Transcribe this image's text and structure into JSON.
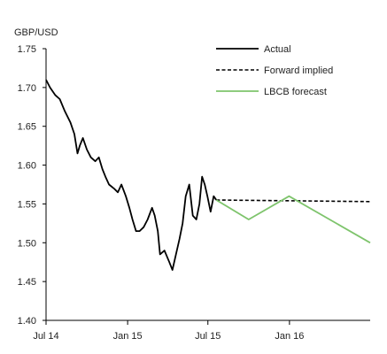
{
  "chart_data": {
    "type": "line",
    "title": "",
    "ylabel": "GBP/USD",
    "xlabel": "",
    "ylim": [
      1.4,
      1.75
    ],
    "yticks": [
      "1.40",
      "1.45",
      "1.50",
      "1.55",
      "1.60",
      "1.65",
      "1.70",
      "1.75"
    ],
    "xlim": [
      "2014-07",
      "2016-07"
    ],
    "xticks": [
      {
        "label": "Jul 14",
        "x": "2014-07"
      },
      {
        "label": "Jan 15",
        "x": "2015-01"
      },
      {
        "label": "Jul 15",
        "x": "2015-07"
      },
      {
        "label": "Jan 16",
        "x": "2016-01"
      }
    ],
    "grid": false,
    "legend_position": "top-right",
    "series": [
      {
        "name": "Actual",
        "style": "solid",
        "color": "#000000",
        "points": [
          [
            "2014-07-01",
            1.71
          ],
          [
            "2014-07-10",
            1.7
          ],
          [
            "2014-07-22",
            1.69
          ],
          [
            "2014-08-01",
            1.685
          ],
          [
            "2014-08-12",
            1.67
          ],
          [
            "2014-08-25",
            1.655
          ],
          [
            "2014-09-03",
            1.64
          ],
          [
            "2014-09-10",
            1.615
          ],
          [
            "2014-09-15",
            1.625
          ],
          [
            "2014-09-22",
            1.635
          ],
          [
            "2014-10-01",
            1.62
          ],
          [
            "2014-10-10",
            1.61
          ],
          [
            "2014-10-20",
            1.605
          ],
          [
            "2014-10-28",
            1.61
          ],
          [
            "2014-11-05",
            1.595
          ],
          [
            "2014-11-12",
            1.585
          ],
          [
            "2014-11-20",
            1.575
          ],
          [
            "2014-12-01",
            1.57
          ],
          [
            "2014-12-10",
            1.565
          ],
          [
            "2014-12-18",
            1.575
          ],
          [
            "2014-12-28",
            1.56
          ],
          [
            "2015-01-05",
            1.545
          ],
          [
            "2015-01-12",
            1.53
          ],
          [
            "2015-01-20",
            1.515
          ],
          [
            "2015-01-28",
            1.515
          ],
          [
            "2015-02-06",
            1.52
          ],
          [
            "2015-02-15",
            1.53
          ],
          [
            "2015-02-25",
            1.545
          ],
          [
            "2015-03-03",
            1.535
          ],
          [
            "2015-03-10",
            1.515
          ],
          [
            "2015-03-15",
            1.485
          ],
          [
            "2015-03-25",
            1.49
          ],
          [
            "2015-04-05",
            1.475
          ],
          [
            "2015-04-12",
            1.465
          ],
          [
            "2015-04-20",
            1.485
          ],
          [
            "2015-04-28",
            1.505
          ],
          [
            "2015-05-05",
            1.525
          ],
          [
            "2015-05-12",
            1.56
          ],
          [
            "2015-05-20",
            1.575
          ],
          [
            "2015-05-28",
            1.535
          ],
          [
            "2015-06-05",
            1.53
          ],
          [
            "2015-06-12",
            1.55
          ],
          [
            "2015-06-18",
            1.585
          ],
          [
            "2015-06-24",
            1.575
          ],
          [
            "2015-06-30",
            1.56
          ],
          [
            "2015-07-07",
            1.54
          ],
          [
            "2015-07-14",
            1.56
          ],
          [
            "2015-07-20",
            1.555
          ]
        ]
      },
      {
        "name": "Forward implied",
        "style": "dashed",
        "color": "#000000",
        "points": [
          [
            "2015-07-20",
            1.555
          ],
          [
            "2016-07-01",
            1.553
          ]
        ]
      },
      {
        "name": "LBCB forecast",
        "style": "solid",
        "color": "#7ec46c",
        "points": [
          [
            "2015-07-20",
            1.555
          ],
          [
            "2015-10-01",
            1.53
          ],
          [
            "2015-12-31",
            1.56
          ],
          [
            "2016-07-01",
            1.5
          ]
        ]
      }
    ]
  }
}
